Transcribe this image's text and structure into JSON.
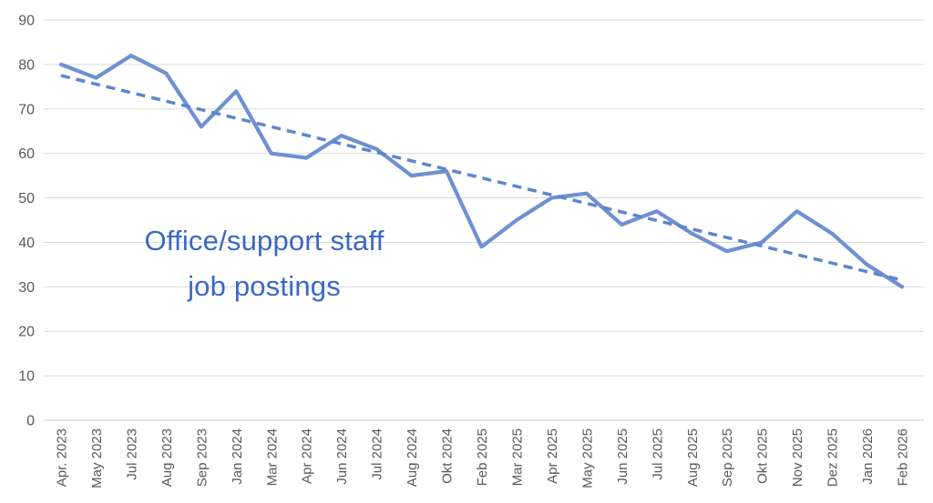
{
  "chart_data": {
    "type": "line",
    "title": "",
    "annotation": {
      "line1": "Office/support staff",
      "line2": "job postings",
      "color": "#3A68C3"
    },
    "categories": [
      "Apr. 2023",
      "May 2023",
      "Jul 2023",
      "Aug 2023",
      "Sep 2023",
      "Jan 2024",
      "Mar 2024",
      "Apr 2024",
      "Jun 2024",
      "Jul 2024",
      "Aug 2024",
      "Okt 2024",
      "Feb 2025",
      "Mar 2025",
      "Apr 2025",
      "May 2025",
      "Jun 2025",
      "Jul 2025",
      "Aug 2025",
      "Sep 2025",
      "Okt 2025",
      "Nov 2025",
      "Dez 2025",
      "Jan 2026",
      "Feb 2026"
    ],
    "series": [
      {
        "name": "job-postings",
        "style": "solid",
        "color": "#6E90D2",
        "values": [
          80,
          77,
          82,
          78,
          66,
          74,
          60,
          59,
          64,
          61,
          55,
          56,
          39,
          45,
          50,
          51,
          44,
          47,
          42,
          38,
          40,
          47,
          42,
          35,
          30
        ]
      },
      {
        "name": "linear-trendline",
        "style": "dashed",
        "color": "#5D86CE",
        "trend": true,
        "trend_start": 77.5,
        "trend_end": 31.5
      }
    ],
    "ylim": [
      0,
      90
    ],
    "yticks": [
      0,
      10,
      20,
      30,
      40,
      50,
      60,
      70,
      80,
      90
    ],
    "xlabel": "",
    "ylabel": "",
    "grid": "horizontal",
    "legend": "none",
    "gridline_color": "#D9D9D9",
    "baseline_color": "#C9C9C9",
    "axis_label_color": "#595959"
  }
}
